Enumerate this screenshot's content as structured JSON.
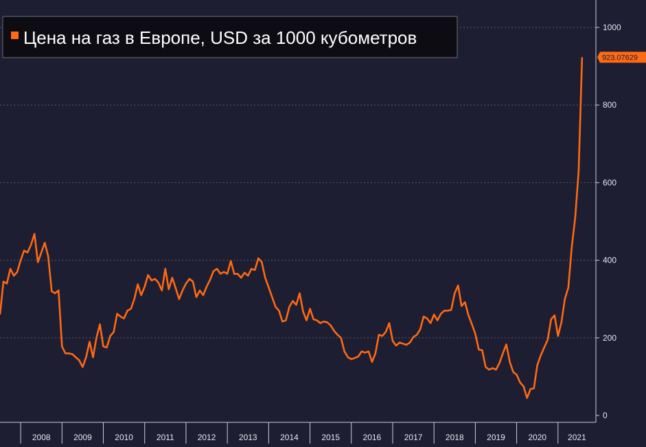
{
  "chart_data": {
    "type": "line",
    "legend_position": "top-left",
    "grid": true,
    "series": [
      {
        "name": "Цена на газ в Европе, USD за 1000 кубометров",
        "color": "#ff6a13",
        "points": [
          [
            "2007-07",
            260
          ],
          [
            "2007-08",
            345
          ],
          [
            "2007-09",
            340
          ],
          [
            "2007-10",
            378
          ],
          [
            "2007-11",
            360
          ],
          [
            "2007-12",
            370
          ],
          [
            "2008-01",
            400
          ],
          [
            "2008-02",
            425
          ],
          [
            "2008-03",
            420
          ],
          [
            "2008-04",
            440
          ],
          [
            "2008-05",
            468
          ],
          [
            "2008-06",
            395
          ],
          [
            "2008-07",
            420
          ],
          [
            "2008-08",
            445
          ],
          [
            "2008-09",
            410
          ],
          [
            "2008-10",
            320
          ],
          [
            "2008-11",
            315
          ],
          [
            "2008-12",
            322
          ],
          [
            "2009-01",
            178
          ],
          [
            "2009-02",
            160
          ],
          [
            "2009-03",
            160
          ],
          [
            "2009-04",
            158
          ],
          [
            "2009-05",
            150
          ],
          [
            "2009-06",
            142
          ],
          [
            "2009-07",
            125
          ],
          [
            "2009-08",
            150
          ],
          [
            "2009-09",
            190
          ],
          [
            "2009-10",
            150
          ],
          [
            "2009-11",
            200
          ],
          [
            "2009-12",
            235
          ],
          [
            "2010-01",
            178
          ],
          [
            "2010-02",
            175
          ],
          [
            "2010-03",
            205
          ],
          [
            "2010-04",
            215
          ],
          [
            "2010-05",
            262
          ],
          [
            "2010-06",
            255
          ],
          [
            "2010-07",
            250
          ],
          [
            "2010-08",
            270
          ],
          [
            "2010-09",
            275
          ],
          [
            "2010-10",
            300
          ],
          [
            "2010-11",
            338
          ],
          [
            "2010-12",
            310
          ],
          [
            "2011-01",
            332
          ],
          [
            "2011-02",
            362
          ],
          [
            "2011-03",
            348
          ],
          [
            "2011-04",
            352
          ],
          [
            "2011-05",
            342
          ],
          [
            "2011-06",
            322
          ],
          [
            "2011-07",
            378
          ],
          [
            "2011-08",
            325
          ],
          [
            "2011-09",
            355
          ],
          [
            "2011-10",
            328
          ],
          [
            "2011-11",
            300
          ],
          [
            "2011-12",
            322
          ],
          [
            "2012-01",
            340
          ],
          [
            "2012-02",
            352
          ],
          [
            "2012-03",
            345
          ],
          [
            "2012-04",
            305
          ],
          [
            "2012-05",
            322
          ],
          [
            "2012-06",
            310
          ],
          [
            "2012-07",
            332
          ],
          [
            "2012-08",
            350
          ],
          [
            "2012-09",
            372
          ],
          [
            "2012-10",
            378
          ],
          [
            "2012-11",
            365
          ],
          [
            "2012-12",
            370
          ],
          [
            "2013-01",
            365
          ],
          [
            "2013-02",
            398
          ],
          [
            "2013-03",
            365
          ],
          [
            "2013-04",
            365
          ],
          [
            "2013-05",
            355
          ],
          [
            "2013-06",
            368
          ],
          [
            "2013-07",
            360
          ],
          [
            "2013-08",
            378
          ],
          [
            "2013-09",
            375
          ],
          [
            "2013-10",
            405
          ],
          [
            "2013-11",
            395
          ],
          [
            "2013-12",
            355
          ],
          [
            "2014-01",
            330
          ],
          [
            "2014-02",
            305
          ],
          [
            "2014-03",
            280
          ],
          [
            "2014-04",
            270
          ],
          [
            "2014-05",
            242
          ],
          [
            "2014-06",
            245
          ],
          [
            "2014-07",
            280
          ],
          [
            "2014-08",
            295
          ],
          [
            "2014-09",
            285
          ],
          [
            "2014-10",
            315
          ],
          [
            "2014-11",
            268
          ],
          [
            "2014-12",
            245
          ],
          [
            "2015-01",
            275
          ],
          [
            "2015-02",
            248
          ],
          [
            "2015-03",
            245
          ],
          [
            "2015-04",
            238
          ],
          [
            "2015-05",
            242
          ],
          [
            "2015-06",
            240
          ],
          [
            "2015-07",
            232
          ],
          [
            "2015-08",
            218
          ],
          [
            "2015-09",
            208
          ],
          [
            "2015-10",
            200
          ],
          [
            "2015-11",
            165
          ],
          [
            "2015-12",
            150
          ],
          [
            "2016-01",
            145
          ],
          [
            "2016-02",
            148
          ],
          [
            "2016-03",
            152
          ],
          [
            "2016-04",
            165
          ],
          [
            "2016-05",
            162
          ],
          [
            "2016-06",
            165
          ],
          [
            "2016-07",
            138
          ],
          [
            "2016-08",
            160
          ],
          [
            "2016-09",
            208
          ],
          [
            "2016-10",
            205
          ],
          [
            "2016-11",
            215
          ],
          [
            "2016-12",
            238
          ],
          [
            "2017-01",
            192
          ],
          [
            "2017-02",
            180
          ],
          [
            "2017-03",
            188
          ],
          [
            "2017-04",
            185
          ],
          [
            "2017-05",
            182
          ],
          [
            "2017-06",
            188
          ],
          [
            "2017-07",
            202
          ],
          [
            "2017-08",
            208
          ],
          [
            "2017-09",
            222
          ],
          [
            "2017-10",
            255
          ],
          [
            "2017-11",
            250
          ],
          [
            "2017-12",
            238
          ],
          [
            "2018-01",
            260
          ],
          [
            "2018-02",
            245
          ],
          [
            "2018-03",
            262
          ],
          [
            "2018-04",
            270
          ],
          [
            "2018-05",
            270
          ],
          [
            "2018-06",
            272
          ],
          [
            "2018-07",
            315
          ],
          [
            "2018-08",
            335
          ],
          [
            "2018-09",
            282
          ],
          [
            "2018-10",
            292
          ],
          [
            "2018-11",
            258
          ],
          [
            "2018-12",
            235
          ],
          [
            "2019-01",
            210
          ],
          [
            "2019-02",
            170
          ],
          [
            "2019-03",
            168
          ],
          [
            "2019-04",
            125
          ],
          [
            "2019-05",
            118
          ],
          [
            "2019-06",
            122
          ],
          [
            "2019-07",
            118
          ],
          [
            "2019-08",
            135
          ],
          [
            "2019-09",
            160
          ],
          [
            "2019-10",
            183
          ],
          [
            "2019-11",
            138
          ],
          [
            "2019-12",
            112
          ],
          [
            "2020-01",
            105
          ],
          [
            "2020-02",
            85
          ],
          [
            "2020-03",
            75
          ],
          [
            "2020-04",
            45
          ],
          [
            "2020-05",
            68
          ],
          [
            "2020-06",
            70
          ],
          [
            "2020-07",
            130
          ],
          [
            "2020-08",
            155
          ],
          [
            "2020-09",
            175
          ],
          [
            "2020-10",
            195
          ],
          [
            "2020-11",
            248
          ],
          [
            "2020-12",
            258
          ],
          [
            "2021-01",
            205
          ],
          [
            "2021-02",
            240
          ],
          [
            "2021-03",
            300
          ],
          [
            "2021-04",
            330
          ],
          [
            "2021-05",
            435
          ],
          [
            "2021-06",
            510
          ],
          [
            "2021-07",
            630
          ],
          [
            "2021-08",
            923.0763
          ]
        ]
      }
    ],
    "last_value_label": "923.07629",
    "x_ticks": [
      "2008",
      "2009",
      "2010",
      "2011",
      "2012",
      "2013",
      "2014",
      "2015",
      "2016",
      "2017",
      "2018",
      "2019",
      "2020",
      "2021"
    ],
    "xlim": [
      "2007-07",
      "2021-12"
    ],
    "y_ticks": [
      0,
      200,
      400,
      600,
      800,
      1000
    ],
    "ylim": [
      0,
      1000
    ]
  }
}
